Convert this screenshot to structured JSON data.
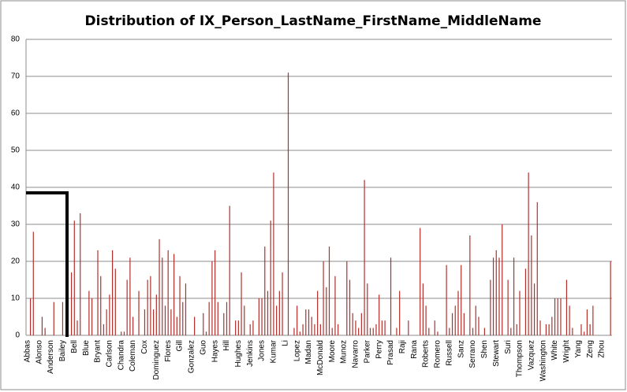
{
  "chart_data": {
    "type": "bar",
    "title": "Distribution of IX_Person_LastName_FirstName_MiddleName",
    "color": "#b2302c",
    "grid": true,
    "ylim": [
      0,
      80
    ],
    "yticks": [
      0,
      10,
      20,
      30,
      40,
      50,
      60,
      70,
      80
    ],
    "categories": [
      "Abbas",
      null,
      null,
      null,
      "Alonso",
      null,
      null,
      null,
      "Anderson",
      null,
      null,
      null,
      "Bailey",
      null,
      null,
      null,
      "Bell",
      null,
      null,
      null,
      "Blue",
      null,
      null,
      null,
      "Bryant",
      null,
      null,
      null,
      "Carlson",
      null,
      null,
      null,
      "Chandra",
      null,
      null,
      null,
      "Coleman",
      null,
      null,
      null,
      "Cox",
      null,
      null,
      null,
      "Dominguez",
      null,
      null,
      null,
      "Flores",
      null,
      null,
      null,
      "Gill",
      null,
      null,
      null,
      "Gonzalez",
      null,
      null,
      null,
      "Guo",
      null,
      null,
      null,
      "Hayes",
      null,
      null,
      null,
      "Hill",
      null,
      null,
      null,
      "Hughes",
      null,
      null,
      null,
      "Jenkins",
      null,
      null,
      null,
      "Jones",
      null,
      null,
      null,
      "Kumar",
      null,
      null,
      null,
      "Li",
      null,
      null,
      null,
      "Lopez",
      null,
      null,
      null,
      "Madan",
      null,
      null,
      null,
      "McDonald",
      null,
      null,
      null,
      "Moore",
      null,
      null,
      null,
      "Munoz",
      null,
      null,
      null,
      "Navarro",
      null,
      null,
      null,
      "Parker",
      null,
      null,
      null,
      "Perry",
      null,
      null,
      null,
      "Prasad",
      null,
      null,
      null,
      "Raji",
      null,
      null,
      null,
      "Rana",
      null,
      null,
      null,
      "Roberts",
      null,
      null,
      null,
      "Romero",
      null,
      null,
      null,
      "Russell",
      null,
      null,
      null,
      "Sanz",
      null,
      null,
      null,
      "Serrano",
      null,
      null,
      null,
      "Shen",
      null,
      null,
      null,
      "Stewart",
      null,
      null,
      null,
      "Suri",
      null,
      null,
      null,
      "Thompson",
      null,
      null,
      null,
      "Vazquez",
      null,
      null,
      null,
      "Washington",
      null,
      null,
      null,
      "White",
      null,
      null,
      null,
      "Wright",
      null,
      null,
      null,
      "Yang",
      null,
      null,
      null,
      "Zeng",
      null,
      null,
      null,
      "Zhou",
      null,
      null,
      null
    ],
    "values": [
      0,
      10,
      28,
      0,
      0,
      5,
      2,
      0,
      0,
      9,
      0,
      0,
      9,
      0,
      0,
      17,
      31,
      4,
      33,
      0,
      0,
      12,
      10,
      0,
      23,
      16,
      3,
      7,
      11,
      23,
      18,
      0,
      1,
      1,
      15,
      21,
      5,
      0,
      12,
      0,
      7,
      15,
      16,
      7,
      11,
      26,
      21,
      8,
      23,
      7,
      22,
      5,
      16,
      9,
      14,
      0,
      0,
      5,
      0,
      0,
      6,
      1,
      9,
      20,
      23,
      9,
      0,
      6,
      9,
      35,
      0,
      4,
      4,
      17,
      8,
      0,
      3,
      4,
      0,
      10,
      10,
      24,
      12,
      31,
      44,
      8,
      12,
      17,
      0,
      71,
      0,
      2,
      8,
      1,
      3,
      7,
      7,
      5,
      3,
      12,
      3,
      20,
      13,
      24,
      2,
      16,
      3,
      0,
      0,
      20,
      15,
      6,
      4,
      2,
      6,
      42,
      14,
      2,
      2,
      3,
      11,
      4,
      4,
      0,
      21,
      0,
      2,
      12,
      0,
      0,
      4,
      0,
      0,
      0,
      29,
      14,
      8,
      2,
      0,
      4,
      1,
      0,
      0,
      19,
      2,
      6,
      8,
      12,
      19,
      6,
      0,
      27,
      2,
      8,
      5,
      0,
      2,
      0,
      15,
      21,
      23,
      21,
      30,
      0,
      15,
      2,
      21,
      3,
      12,
      0,
      18,
      44,
      27,
      14,
      36,
      4,
      0,
      3,
      3,
      5,
      10,
      10,
      10,
      0,
      15,
      8,
      2,
      0,
      0,
      3,
      1,
      7,
      3,
      8,
      0,
      0,
      0,
      0,
      0,
      20
    ]
  }
}
